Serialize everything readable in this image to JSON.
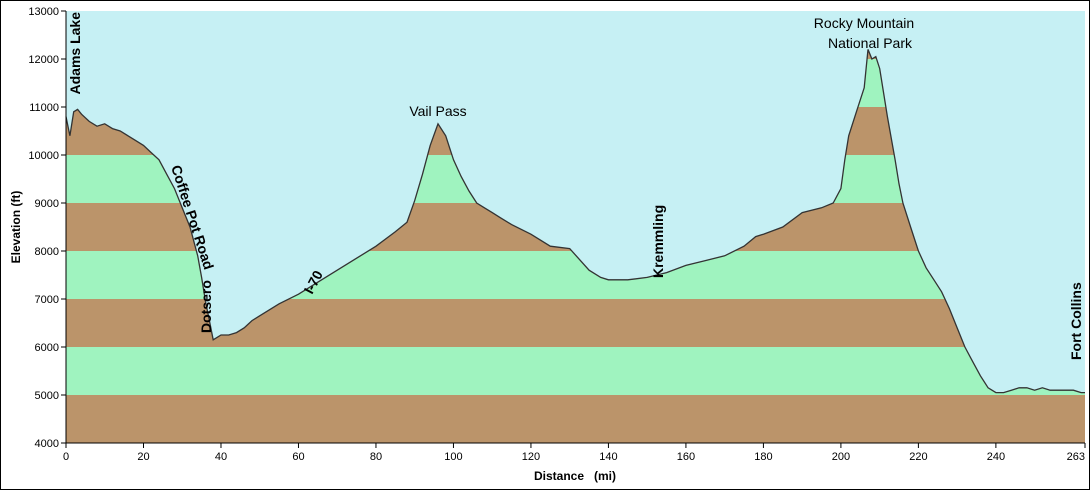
{
  "chart_data": {
    "type": "area",
    "title": "",
    "xlabel": "Distance   (mi)",
    "ylabel": "Elevation (ft)",
    "xlim": [
      0,
      263
    ],
    "ylim": [
      4000,
      13000
    ],
    "x_ticks": [
      0,
      20,
      40,
      60,
      80,
      100,
      120,
      140,
      160,
      180,
      200,
      220,
      240,
      263
    ],
    "y_ticks": [
      4000,
      5000,
      6000,
      7000,
      8000,
      9000,
      10000,
      11000,
      12000,
      13000
    ],
    "band_colors": [
      "#bb946a",
      "#9ff3bf"
    ],
    "plot_background": "#c6f0f4",
    "x": [
      0,
      1,
      2,
      3,
      4,
      6,
      8,
      10,
      12,
      14,
      16,
      18,
      20,
      22,
      24,
      26,
      28,
      30,
      32,
      34,
      35,
      36,
      37,
      38,
      40,
      42,
      44,
      46,
      48,
      50,
      55,
      60,
      65,
      70,
      75,
      80,
      85,
      88,
      90,
      92,
      94,
      96,
      98,
      100,
      102,
      104,
      106,
      108,
      110,
      112,
      115,
      120,
      125,
      130,
      135,
      138,
      140,
      145,
      150,
      155,
      160,
      165,
      170,
      175,
      178,
      180,
      185,
      190,
      195,
      198,
      200,
      201,
      202,
      204,
      206,
      207,
      208,
      209,
      210,
      212,
      214,
      215,
      216,
      218,
      220,
      222,
      224,
      226,
      228,
      230,
      232,
      234,
      236,
      238,
      240,
      242,
      244,
      246,
      248,
      250,
      252,
      254,
      256,
      258,
      260,
      262,
      263
    ],
    "y": [
      10800,
      10400,
      10900,
      10950,
      10850,
      10700,
      10600,
      10650,
      10550,
      10500,
      10400,
      10300,
      10200,
      10050,
      9900,
      9600,
      9300,
      8900,
      8500,
      7900,
      7450,
      6950,
      6550,
      6150,
      6250,
      6250,
      6300,
      6400,
      6550,
      6650,
      6900,
      7100,
      7350,
      7600,
      7850,
      8100,
      8400,
      8600,
      9050,
      9600,
      10200,
      10650,
      10400,
      9900,
      9550,
      9250,
      9000,
      8900,
      8800,
      8700,
      8550,
      8350,
      8100,
      8050,
      7600,
      7450,
      7400,
      7400,
      7450,
      7550,
      7700,
      7800,
      7900,
      8100,
      8300,
      8350,
      8500,
      8800,
      8900,
      9000,
      9300,
      9900,
      10400,
      10900,
      11400,
      12200,
      12000,
      12050,
      11800,
      10800,
      9900,
      9400,
      9000,
      8500,
      8000,
      7650,
      7400,
      7150,
      6800,
      6400,
      6000,
      5700,
      5400,
      5150,
      5050,
      5050,
      5100,
      5150,
      5150,
      5100,
      5150,
      5100,
      5100,
      5100,
      5100,
      5050,
      5050
    ]
  },
  "annotations": {
    "adams_lake": "Adams Lake",
    "coffee_pot_road": "Coffee Pot Road",
    "dotsero": "Dotsero",
    "i70": "I-70",
    "vail_pass": "Vail Pass",
    "kremmling": "Kremmling",
    "rocky_mountain_line1": "Rocky Mountain",
    "rocky_mountain_line2": "National Park",
    "fort_collins": "Fort Collins"
  }
}
